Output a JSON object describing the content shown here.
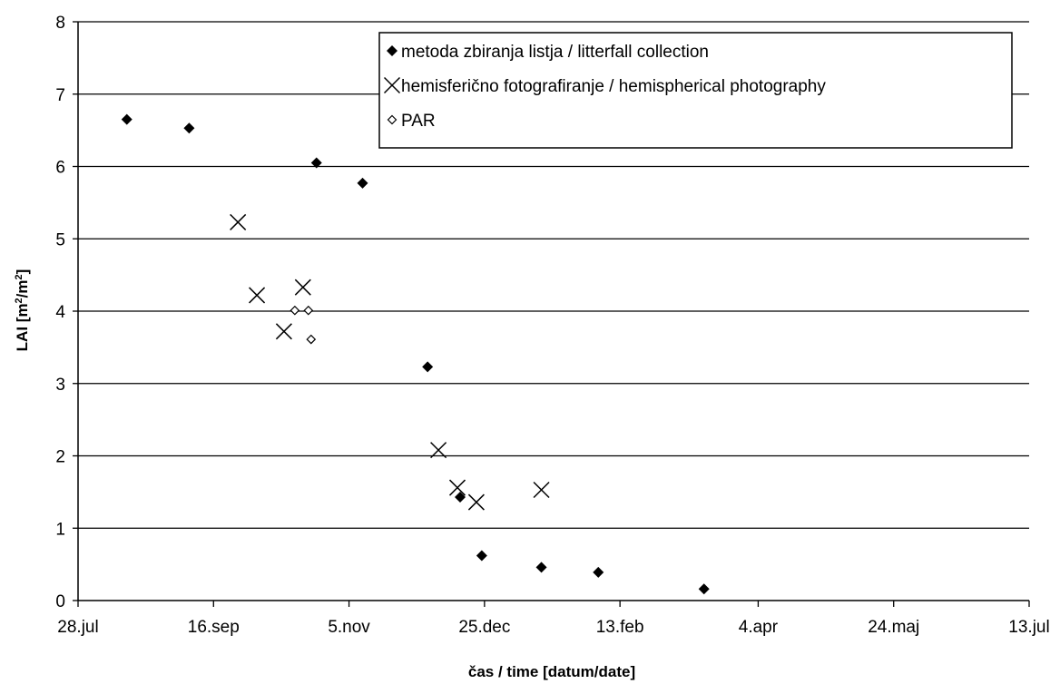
{
  "chart_data": {
    "type": "scatter",
    "title": "",
    "xlabel": "čas / time [datum/date]",
    "ylabel_base": "LAI [m",
    "ylabel_sup1": "2",
    "ylabel_mid": "/m",
    "ylabel_sup2": "2",
    "ylabel_end": "]",
    "x_axis": {
      "type": "date",
      "range": [
        "2007-07-28",
        "2008-07-13"
      ],
      "tick_dates": [
        "2007-07-28",
        "2007-09-16",
        "2007-11-05",
        "2007-12-25",
        "2008-02-13",
        "2008-04-04",
        "2008-05-24",
        "2008-07-13"
      ],
      "tick_labels": [
        "28.jul",
        "16.sep",
        "5.nov",
        "25.dec",
        "13.feb",
        "4.apr",
        "24.maj",
        "13.jul"
      ]
    },
    "ylim": [
      0,
      8
    ],
    "y_ticks": [
      0,
      1,
      2,
      3,
      4,
      5,
      6,
      7,
      8
    ],
    "y_tick_labels": [
      "0",
      "1",
      "2",
      "3",
      "4",
      "5",
      "6",
      "7",
      "8"
    ],
    "grid": "horizontal",
    "legend": {
      "position": "top-right"
    },
    "series": [
      {
        "name": "metoda zbiranja listja / litterfall collection",
        "marker": "diamond-filled",
        "points": [
          {
            "x": "2007-08-15",
            "y": 6.65
          },
          {
            "x": "2007-09-07",
            "y": 6.53
          },
          {
            "x": "2007-10-24",
            "y": 6.05
          },
          {
            "x": "2007-11-10",
            "y": 5.77
          },
          {
            "x": "2007-12-04",
            "y": 3.23
          },
          {
            "x": "2007-12-16",
            "y": 1.43
          },
          {
            "x": "2007-12-24",
            "y": 0.62
          },
          {
            "x": "2008-01-15",
            "y": 0.46
          },
          {
            "x": "2008-02-05",
            "y": 0.39
          },
          {
            "x": "2008-03-15",
            "y": 0.16
          }
        ]
      },
      {
        "name": "hemisferično fotografiranje / hemispherical photography",
        "marker": "x",
        "points": [
          {
            "x": "2007-09-25",
            "y": 5.23
          },
          {
            "x": "2007-10-02",
            "y": 4.22
          },
          {
            "x": "2007-10-12",
            "y": 3.72
          },
          {
            "x": "2007-10-19",
            "y": 4.33
          },
          {
            "x": "2007-12-08",
            "y": 2.08
          },
          {
            "x": "2007-12-15",
            "y": 1.56
          },
          {
            "x": "2007-12-22",
            "y": 1.36
          },
          {
            "x": "2008-01-15",
            "y": 1.53
          }
        ]
      },
      {
        "name": "PAR",
        "marker": "diamond-open",
        "points": [
          {
            "x": "2007-10-16",
            "y": 4.01
          },
          {
            "x": "2007-10-21",
            "y": 4.01
          },
          {
            "x": "2007-10-22",
            "y": 3.61
          }
        ]
      }
    ]
  }
}
